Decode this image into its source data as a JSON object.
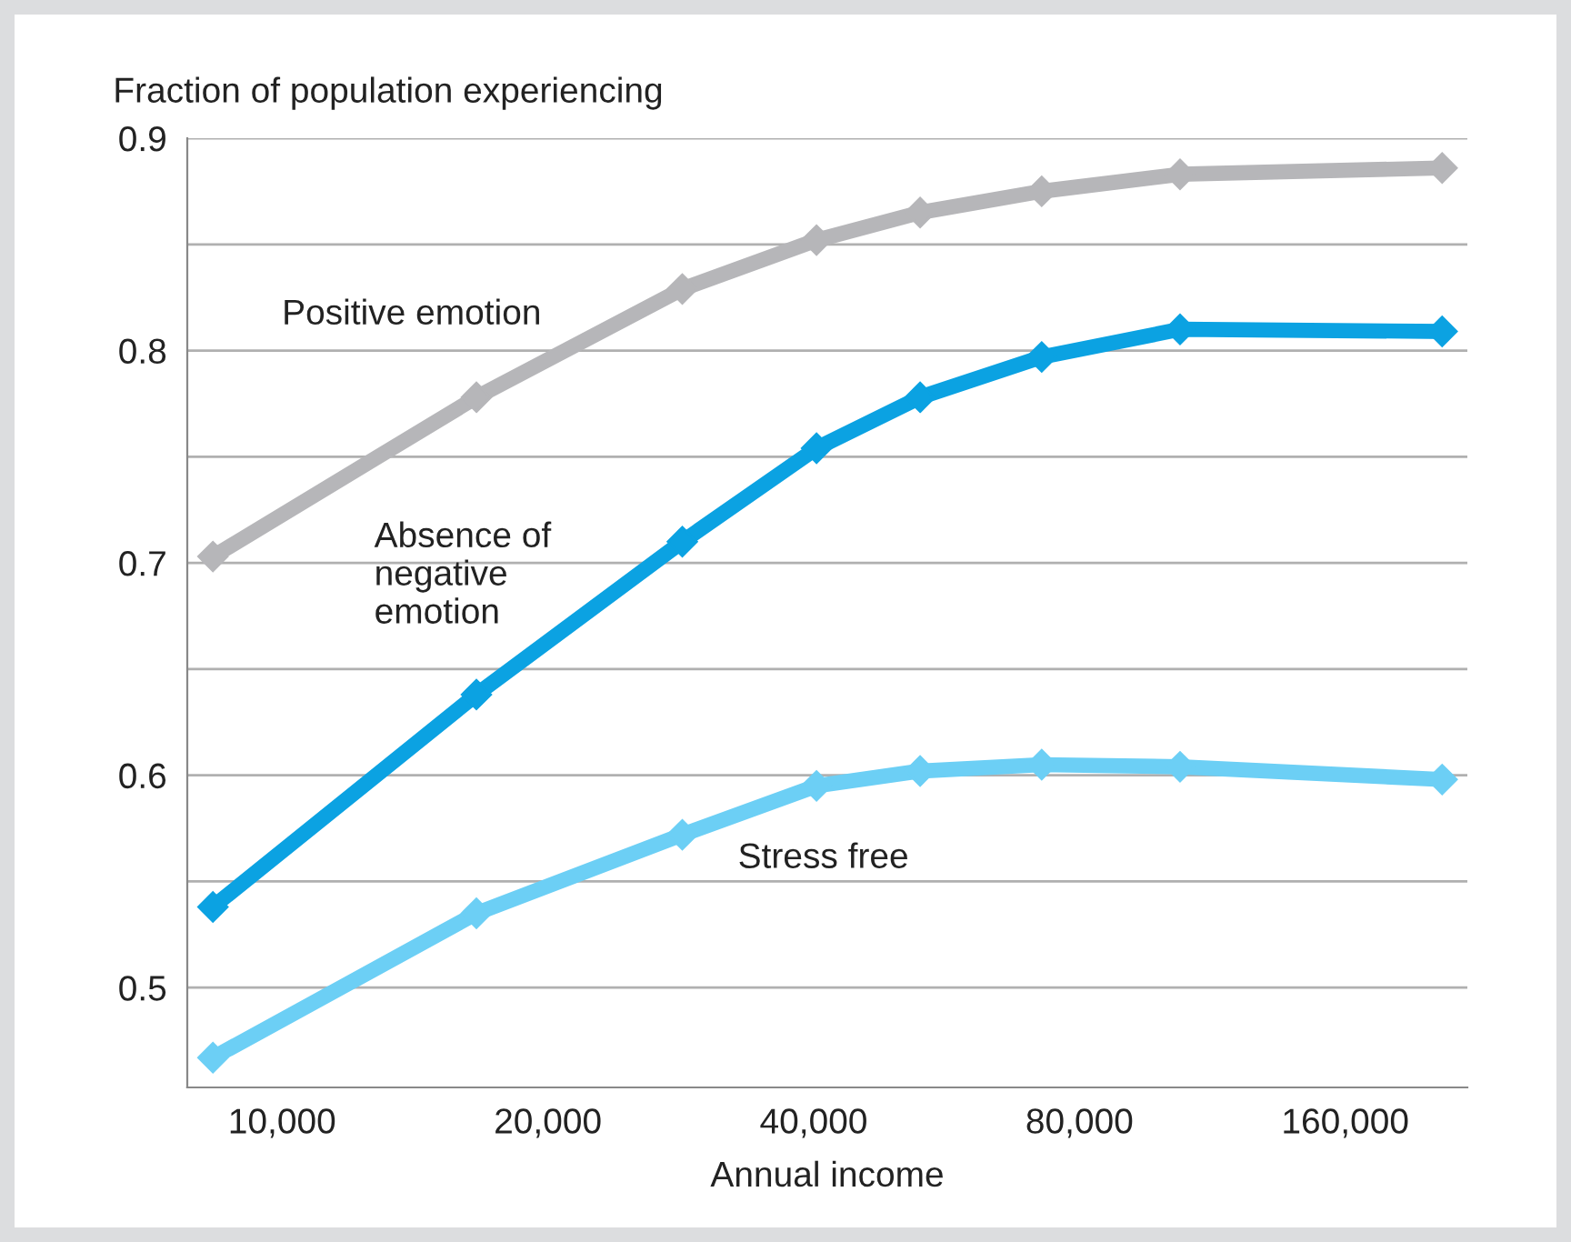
{
  "chart_data": {
    "type": "line",
    "ylabel": "Fraction of population experiencing",
    "xlabel": "Annual income",
    "log": "x",
    "x": [
      8350,
      16600,
      28400,
      40300,
      52800,
      72500,
      104000,
      206000
    ],
    "xlim": [
      7810,
      220000
    ],
    "xticks": [
      {
        "value": 10000,
        "label": "10,000"
      },
      {
        "value": 20000,
        "label": "20,000"
      },
      {
        "value": 40000,
        "label": "40,000"
      },
      {
        "value": 80000,
        "label": "80,000"
      },
      {
        "value": 160000,
        "label": "160,000"
      }
    ],
    "ylim": [
      0.453,
      0.9
    ],
    "yticks": [
      {
        "value": 0.5,
        "label": "0.5"
      },
      {
        "value": 0.55,
        "label": null
      },
      {
        "value": 0.6,
        "label": "0.6"
      },
      {
        "value": 0.65,
        "label": null
      },
      {
        "value": 0.7,
        "label": "0.7"
      },
      {
        "value": 0.75,
        "label": null
      },
      {
        "value": 0.8,
        "label": "0.8"
      },
      {
        "value": 0.85,
        "label": null
      },
      {
        "value": 0.9,
        "label": "0.9"
      }
    ],
    "grid": "y",
    "marker": "diamond",
    "line_style": "solid",
    "series": [
      {
        "name": "Positive emotion",
        "color": "#b6b6b9",
        "values": [
          0.703,
          0.778,
          0.829,
          0.852,
          0.865,
          0.875,
          0.883,
          0.886
        ]
      },
      {
        "name": "Absence of\nnegative\nemotion",
        "color": "#0ba2e2",
        "values": [
          0.538,
          0.638,
          0.71,
          0.754,
          0.778,
          0.797,
          0.81,
          0.809
        ]
      },
      {
        "name": "Stress free",
        "color": "#6ccff5",
        "values": [
          0.467,
          0.535,
          0.572,
          0.595,
          0.602,
          0.605,
          0.604,
          0.598
        ]
      }
    ]
  }
}
